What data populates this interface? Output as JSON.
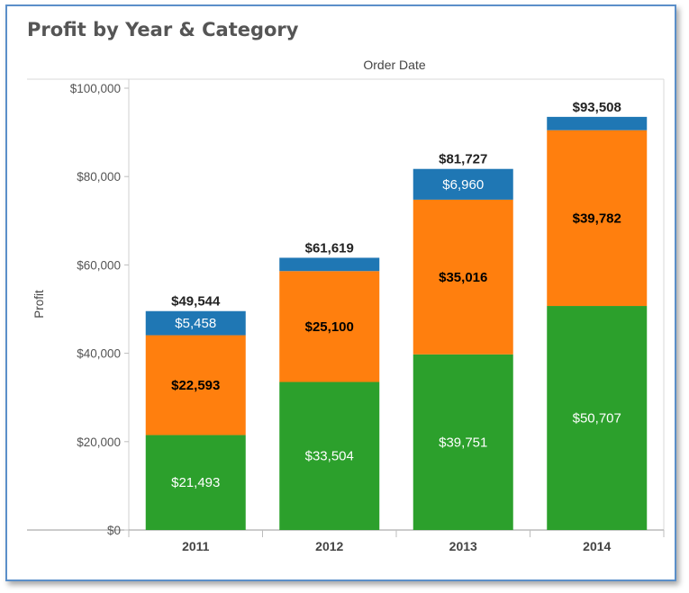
{
  "header": {
    "title": "Profit by Year & Category"
  },
  "chart_data": {
    "type": "bar",
    "stacked": true,
    "column_header": "Order Date",
    "ylabel": "Profit",
    "ylim": [
      0,
      100000
    ],
    "yticks": [
      0,
      20000,
      40000,
      60000,
      80000,
      100000
    ],
    "ytick_labels": [
      "$0",
      "$20,000",
      "$40,000",
      "$60,000",
      "$80,000",
      "$100,000"
    ],
    "categories": [
      "2011",
      "2012",
      "2013",
      "2014"
    ],
    "series": [
      {
        "color": "#2ca02c",
        "text_color": "#ffffff",
        "values": [
          21493,
          33504,
          39751,
          50707
        ],
        "labels": [
          "$21,493",
          "$33,504",
          "$39,751",
          "$50,707"
        ]
      },
      {
        "color": "#ff7f0e",
        "text_color": "#000000",
        "values": [
          22593,
          25100,
          35016,
          39782
        ],
        "labels": [
          "$22,593",
          "$25,100",
          "$35,016",
          "$39,782"
        ]
      },
      {
        "color": "#1f77b4",
        "text_color": "#ffffff",
        "values": [
          5458,
          3015,
          6960,
          3019
        ],
        "labels": [
          "$5,458",
          "",
          "$6,960",
          ""
        ]
      }
    ],
    "totals": [
      49544,
      61619,
      81727,
      93508
    ],
    "total_labels": [
      "$49,544",
      "$61,619",
      "$81,727",
      "$93,508"
    ],
    "grid": false,
    "legend": "none"
  }
}
